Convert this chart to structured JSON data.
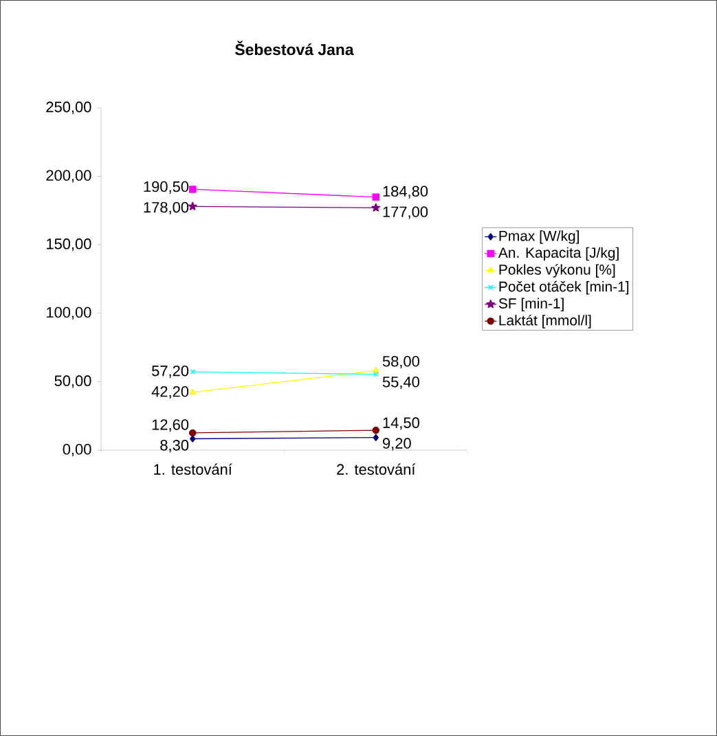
{
  "chart_data": {
    "type": "line",
    "title": "Šebestová Jana",
    "categories": [
      "1. testování",
      "2. testování"
    ],
    "ylim": [
      0,
      250
    ],
    "yticks": [
      {
        "value": 0,
        "label": "0,00"
      },
      {
        "value": 50,
        "label": "50,00"
      },
      {
        "value": 100,
        "label": "100,00"
      },
      {
        "value": 150,
        "label": "150,00"
      },
      {
        "value": 200,
        "label": "200,00"
      },
      {
        "value": 250,
        "label": "250,00"
      }
    ],
    "grid": false,
    "legend": "right",
    "series": [
      {
        "name": "Pmax [W/kg]",
        "color": "#000080",
        "marker": "diamond",
        "values": [
          8.3,
          9.2
        ],
        "value_labels": [
          "8,30",
          "9,20"
        ]
      },
      {
        "name": "An. Kapacita [J/kg]",
        "color": "#ff00ff",
        "marker": "square",
        "values": [
          190.5,
          184.8
        ],
        "value_labels": [
          "190,50",
          "184,80"
        ]
      },
      {
        "name": "Pokles výkonu [%]",
        "color": "#ffff00",
        "marker": "triangle",
        "values": [
          42.2,
          58.0
        ],
        "value_labels": [
          "42,20",
          "58,00"
        ]
      },
      {
        "name": "Počet otáček [min-1]",
        "color": "#00ffff",
        "marker": "cross",
        "values": [
          57.2,
          55.4
        ],
        "value_labels": [
          "57,20",
          "55,40"
        ]
      },
      {
        "name": "SF [min-1]",
        "color": "#800080",
        "marker": "star",
        "values": [
          178.0,
          177.0
        ],
        "value_labels": [
          "178,00",
          "177,00"
        ]
      },
      {
        "name": "Laktát [mmol/l]",
        "color": "#800000",
        "marker": "circle",
        "values": [
          12.6,
          14.5
        ],
        "value_labels": [
          "12,60",
          "14,50"
        ]
      }
    ]
  }
}
